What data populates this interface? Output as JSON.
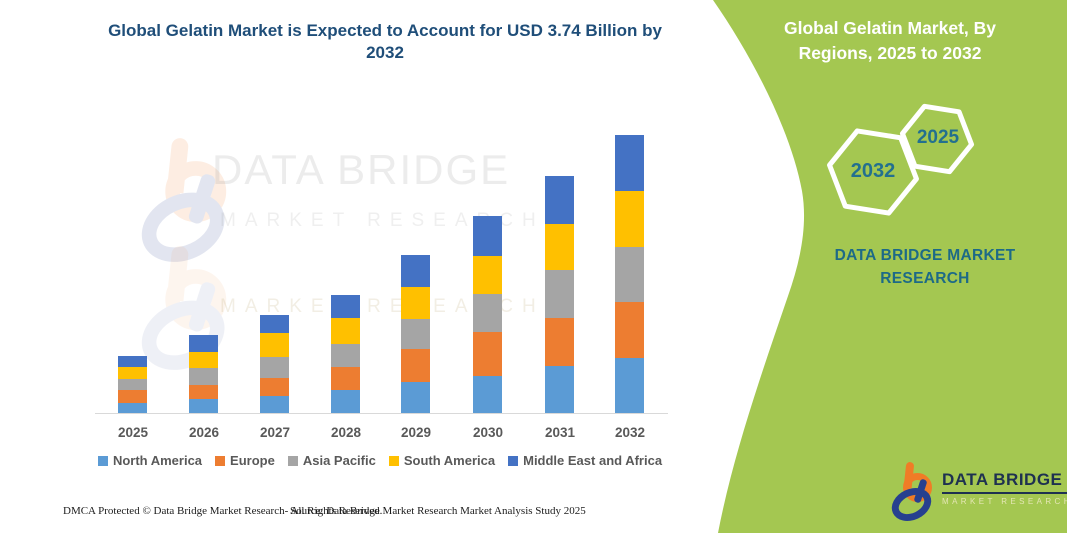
{
  "title": "Global Gelatin Market is Expected to Account for USD 3.74 Billion by 2032",
  "chart_data": {
    "type": "bar",
    "stacked": true,
    "title": "Global Gelatin Market is Expected to Account for USD 3.74 Billion by 2032",
    "unit": "USD Billion",
    "xlabel": "",
    "ylabel": "",
    "y_axis_visible": false,
    "grid": false,
    "legend_position": "bottom",
    "ylim": [
      0,
      3.9
    ],
    "categories": [
      "2025",
      "2026",
      "2027",
      "2028",
      "2029",
      "2030",
      "2031",
      "2032"
    ],
    "series": [
      {
        "name": "North America",
        "color": "#5B9BD5",
        "values": [
          0.15,
          0.2,
          0.24,
          0.32,
          0.43,
          0.51,
          0.64,
          0.75
        ]
      },
      {
        "name": "Europe",
        "color": "#ED7D31",
        "values": [
          0.17,
          0.19,
          0.24,
          0.31,
          0.44,
          0.59,
          0.64,
          0.75
        ]
      },
      {
        "name": "Asia Pacific",
        "color": "#A5A5A5",
        "values": [
          0.15,
          0.23,
          0.28,
          0.31,
          0.4,
          0.51,
          0.64,
          0.74
        ]
      },
      {
        "name": "South America",
        "color": "#FFC000",
        "values": [
          0.16,
          0.21,
          0.32,
          0.35,
          0.43,
          0.51,
          0.62,
          0.75
        ]
      },
      {
        "name": "Middle East and Africa",
        "color": "#4472C4",
        "values": [
          0.15,
          0.23,
          0.24,
          0.31,
          0.43,
          0.54,
          0.64,
          0.75
        ]
      }
    ],
    "totals_estimated": [
      0.78,
      1.06,
      1.32,
      1.6,
      2.13,
      2.66,
      3.18,
      3.74
    ]
  },
  "watermark": {
    "line1": "DATA BRIDGE",
    "line2": "MARKET RESEARCH",
    "line3": "MARKET RESEARCH"
  },
  "footer": {
    "left": "DMCA Protected © Data Bridge Market Research-  All Rights Reserved.",
    "right": "Source: Data Bridge Market Research  Market Analysis Study 2025"
  },
  "side_panel": {
    "heading": "Global Gelatin Market, By Regions, 2025 to 2032",
    "hexagons": [
      {
        "label": "2032"
      },
      {
        "label": "2025"
      }
    ],
    "brand_text": "DATA BRIDGE MARKET RESEARCH",
    "logo": {
      "name": "DATA BRIDGE",
      "tagline": "MARKET RESEARCH"
    }
  },
  "colors": {
    "title_navy": "#1F4E79",
    "panel_green": "#A4C751",
    "teal_text": "#23708F",
    "axis_label_gray": "#595959",
    "axis_line": "#D9D9D9",
    "logo_orange": "#F07C26",
    "logo_blue": "#27408F",
    "logo_navy": "#1E3150"
  }
}
